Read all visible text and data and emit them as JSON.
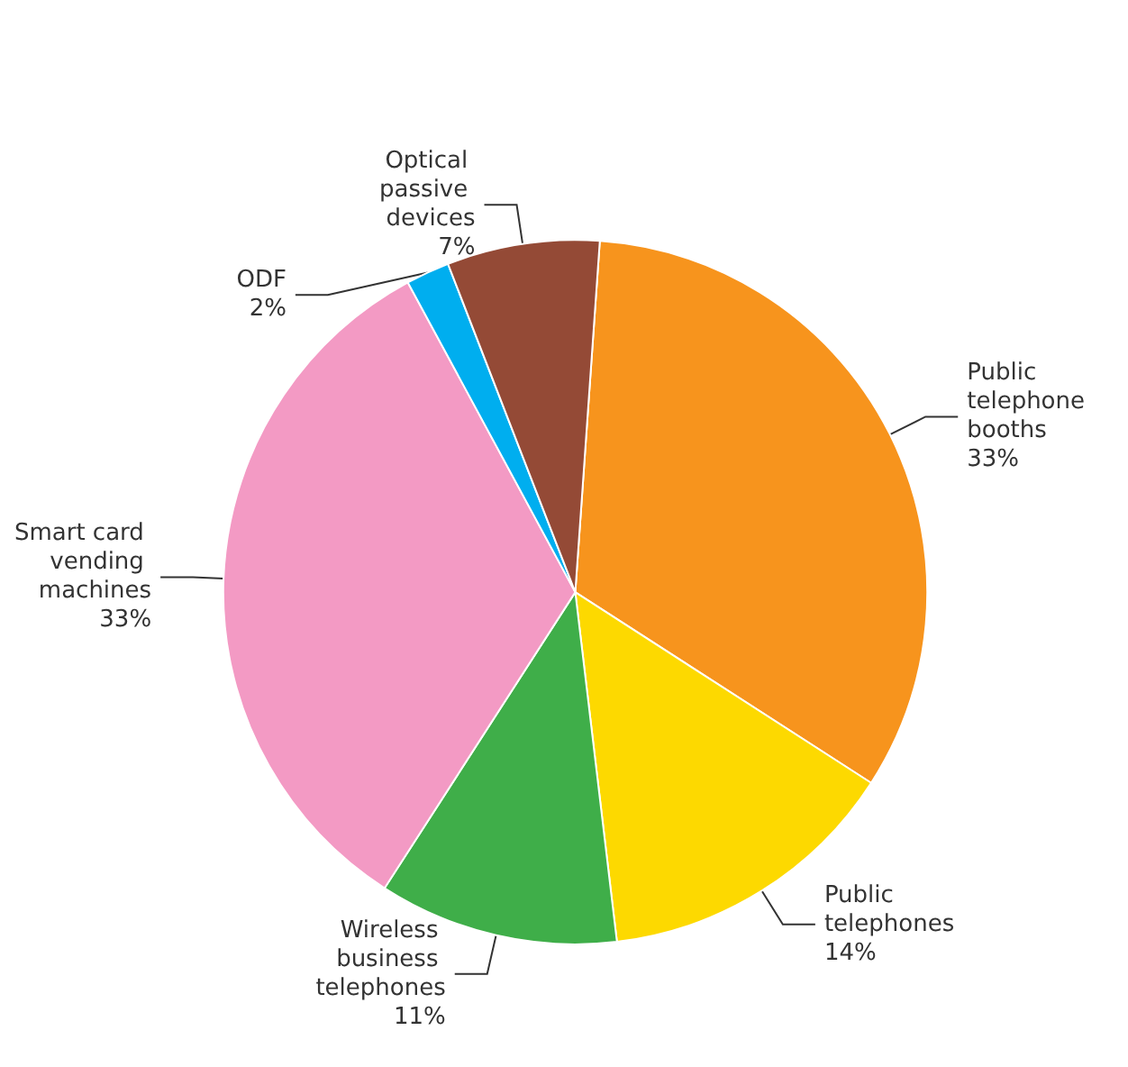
{
  "chart_data": {
    "type": "pie",
    "categories": [
      "Public telephone booths",
      "Public telephones",
      "Wireless business telephones",
      "Smart card vending machines",
      "ODF",
      "Optical passive devices"
    ],
    "values": [
      33,
      14,
      11,
      33,
      2,
      7
    ],
    "colors": [
      "#f7941d",
      "#fdd900",
      "#3fae49",
      "#f39ac4",
      "#00aeef",
      "#944a36"
    ],
    "value_labels": [
      "33%",
      "14%",
      "11%",
      "33%",
      "2%",
      "7%"
    ],
    "legend": false
  }
}
